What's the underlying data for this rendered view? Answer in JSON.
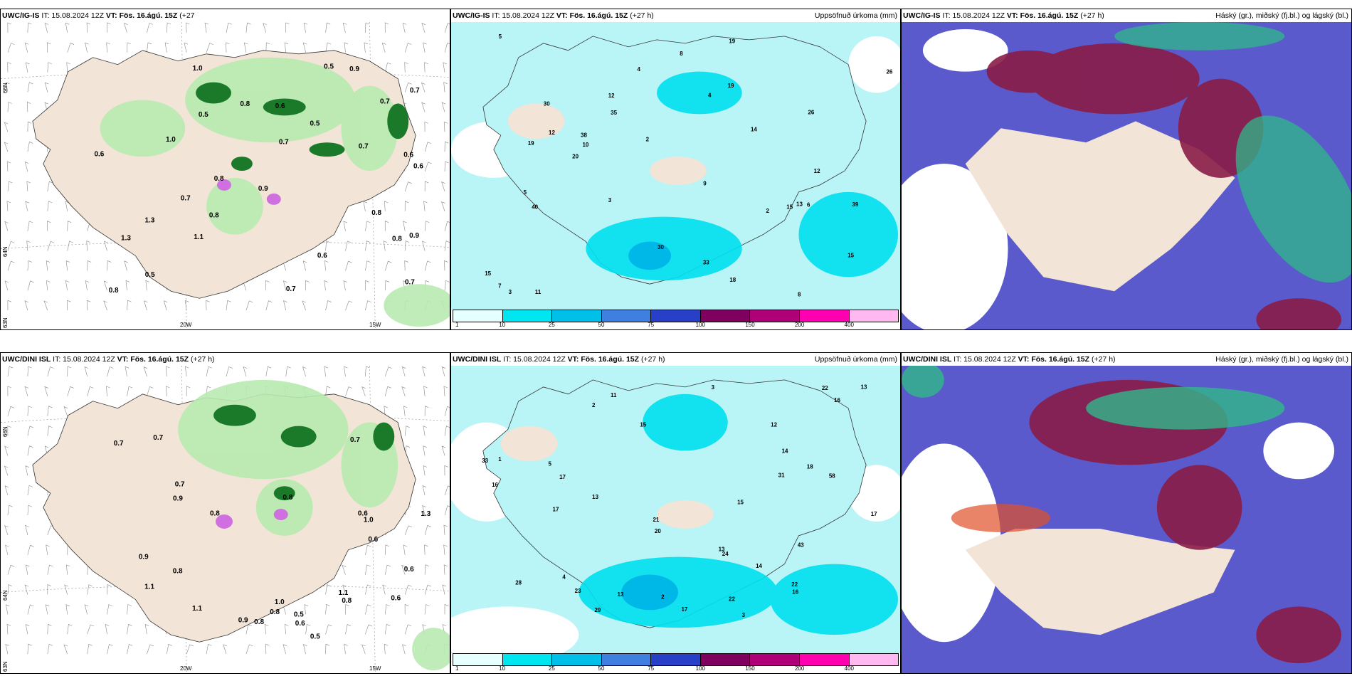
{
  "panels": {
    "tl": {
      "model": "UWC/IG-IS",
      "it": "IT: 15.08.2024 12Z",
      "vt": "VT: Fös. 16.ágú. 15Z",
      "lead": "(+27",
      "right": ""
    },
    "tm": {
      "model": "UWC/IG-IS",
      "it": "IT: 15.08.2024 12Z",
      "vt": "VT: Fös. 16.ágú. 15Z",
      "lead": "(+27 h)",
      "right": "Uppsöfnuð úrkoma (mm)"
    },
    "tr": {
      "model": "UWC/IG-IS",
      "it": "IT: 15.08.2024 12Z",
      "vt": "VT: Fös. 16.ágú. 15Z",
      "lead": "(+27 h)",
      "right": "Háský (gr.), miðský (fj.bl.) og lágský (bl.)"
    },
    "bl": {
      "model": "UWC/DINI ISL",
      "it": "IT: 15.08.2024 12Z",
      "vt": "VT: Fös. 16.ágú. 15Z",
      "lead": "(+27 h)",
      "right": ""
    },
    "bm": {
      "model": "UWC/DINI ISL",
      "it": "IT: 15.08.2024 12Z",
      "vt": "VT: Fös. 16.ágú. 15Z",
      "lead": "(+27 h)",
      "right": "Uppsöfnuð úrkoma (mm)"
    },
    "br": {
      "model": "UWC/DINI ISL",
      "it": "IT: 15.08.2024 12Z",
      "vt": "VT: Fös. 16.ágú. 15Z",
      "lead": "(+27 h)",
      "right": "Háský (gr.), miðský (fj.bl.) og lágský (bl.)"
    }
  },
  "lead_tail": "h)",
  "axis": {
    "lat66": "66N",
    "lat64": "64N",
    "lat63": "63N",
    "lon20": "20W",
    "lon15": "15W"
  },
  "colorbar": {
    "labels": [
      "1",
      "10",
      "25",
      "50",
      "75",
      "100",
      "150",
      "200",
      "400"
    ],
    "colors": [
      "#e6ffff",
      "#00e6f0",
      "#00c0ea",
      "#3f7fe0",
      "#2840c8",
      "#800060",
      "#b00078",
      "#ff00b0",
      "#ffb8f0"
    ]
  },
  "wind_values_top": [
    "0.5",
    "0.6",
    "0.5",
    "0.6",
    "0.8",
    "0.9",
    "0.8",
    "0.5",
    "0.8",
    "0.7",
    "1.0",
    "0.8",
    "0.7",
    "1.1",
    "1.3",
    "0.9",
    "0.7",
    "0.6",
    "1.0",
    "0.8",
    "0.7",
    "0.6",
    "0.5",
    "1.3",
    "0.7",
    "0.9",
    "0.8",
    "0.6",
    "0.7",
    "0.7"
  ],
  "wind_values_bottom": [
    "0.9",
    "1.0",
    "0.8",
    "0.7",
    "1.3",
    "1.1",
    "0.8",
    "0.9",
    "0.6",
    "0.7",
    "0.8",
    "0.6",
    "0.8",
    "0.5",
    "0.7",
    "0.6",
    "1.1",
    "0.8",
    "0.6",
    "1.0",
    "0.7",
    "0.6",
    "0.9",
    "0.8",
    "0.5",
    "1.1"
  ],
  "precip_values_top": [
    "4",
    "2",
    "3",
    "5",
    "12",
    "30",
    "26",
    "15",
    "33",
    "39",
    "19",
    "26",
    "8",
    "10",
    "7",
    "15",
    "19",
    "40",
    "11",
    "8",
    "9",
    "35",
    "38",
    "19",
    "18",
    "20",
    "14",
    "12",
    "13",
    "15",
    "12",
    "30",
    "5",
    "4",
    "6",
    "3",
    "2"
  ],
  "precip_values_bottom": [
    "3",
    "2",
    "4",
    "5",
    "18",
    "22",
    "17",
    "13",
    "20",
    "23",
    "28",
    "33",
    "21",
    "13",
    "31",
    "22",
    "16",
    "16",
    "43",
    "58",
    "22",
    "24",
    "29",
    "16",
    "15",
    "14",
    "17",
    "17",
    "17",
    "15",
    "14",
    "13",
    "12",
    "13",
    "11",
    "2",
    "3",
    "1"
  ]
}
